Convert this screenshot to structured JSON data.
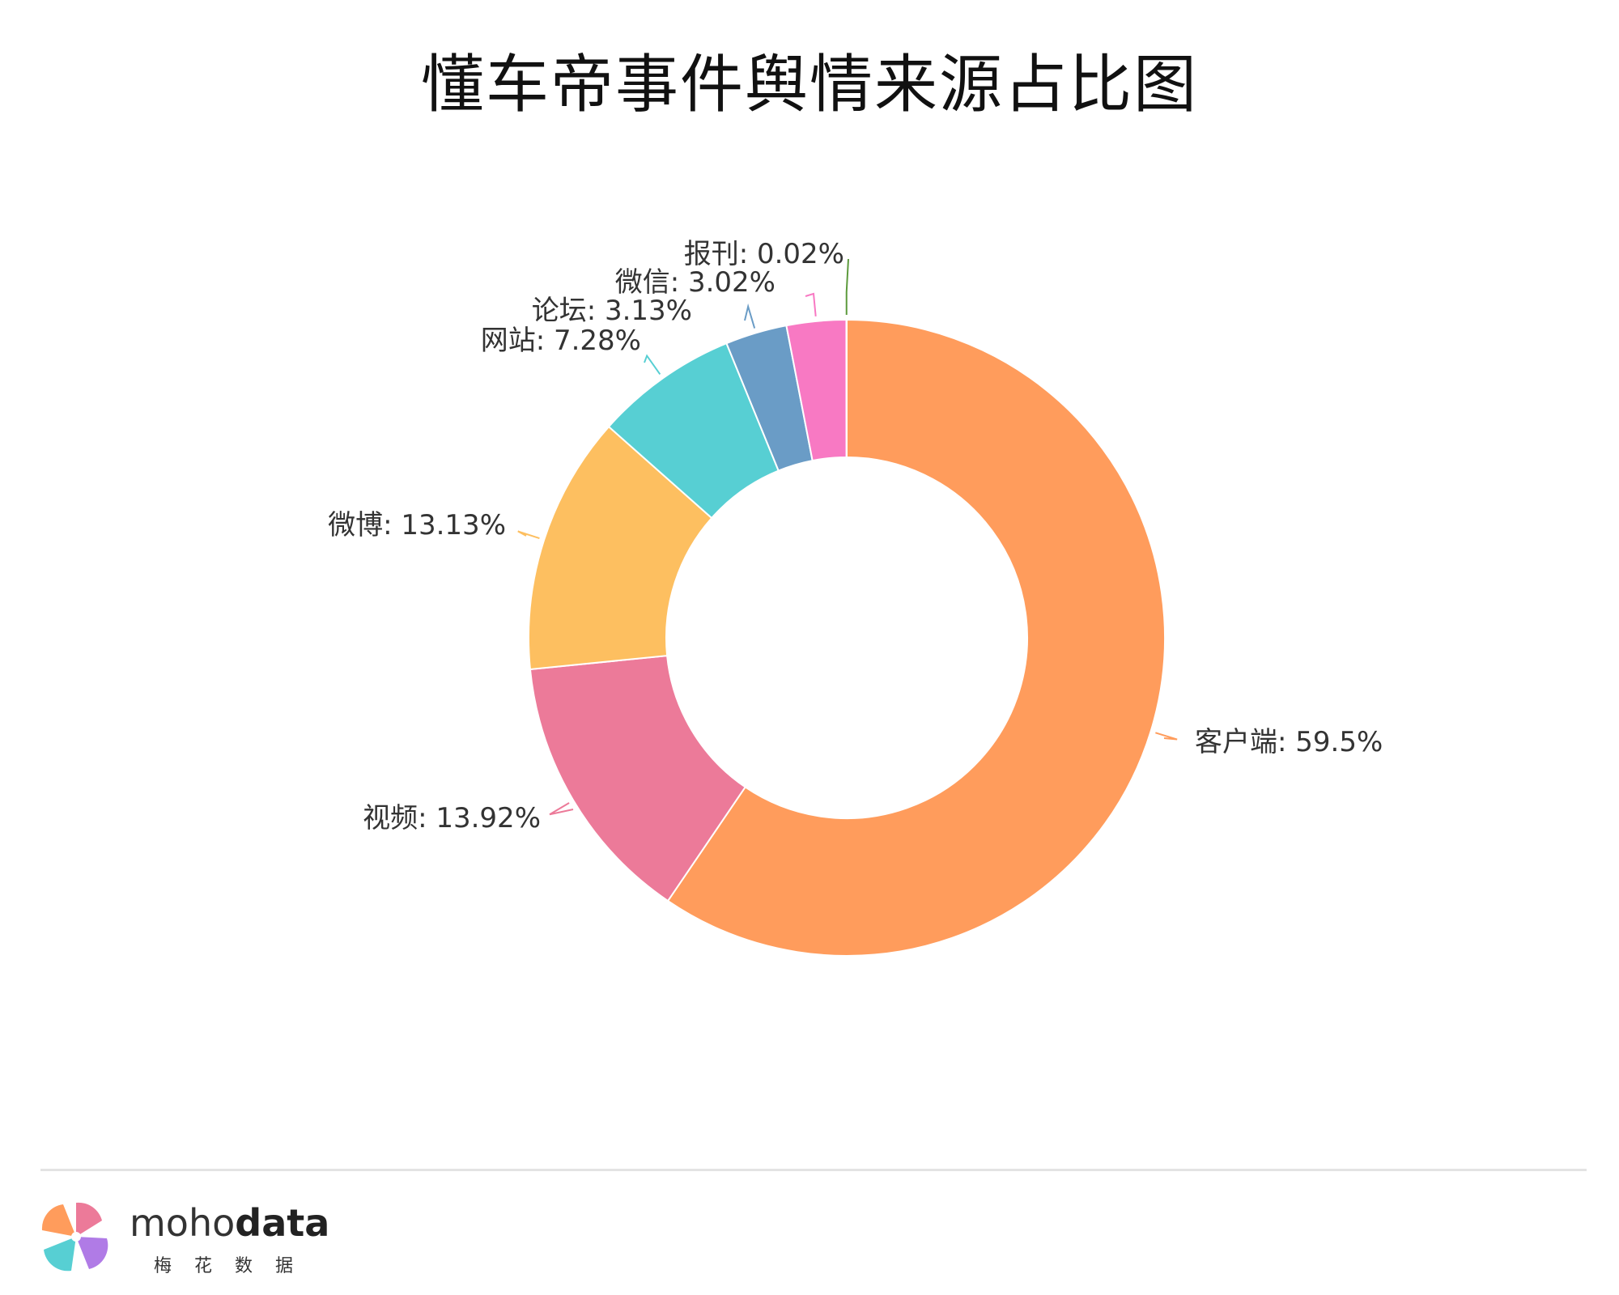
{
  "chart_data": {
    "type": "pie",
    "variant": "donut",
    "title": "懂车帝事件舆情来源占比图",
    "series": [
      {
        "name": "客户端",
        "value": 59.5,
        "label": "客户端: 59.5%",
        "color": "#FF9C5C"
      },
      {
        "name": "视频",
        "value": 13.92,
        "label": "视频: 13.92%",
        "color": "#EC7A99"
      },
      {
        "name": "微博",
        "value": 13.13,
        "label": "微博: 13.13%",
        "color": "#FDBF60"
      },
      {
        "name": "网站",
        "value": 7.28,
        "label": "网站: 7.28%",
        "color": "#57CFD3"
      },
      {
        "name": "论坛",
        "value": 3.13,
        "label": "论坛: 3.13%",
        "color": "#6A9CC6"
      },
      {
        "name": "微信",
        "value": 3.02,
        "label": "微信: 3.02%",
        "color": "#F879C3"
      },
      {
        "name": "报刊",
        "value": 0.02,
        "label": "报刊: 0.02%",
        "color": "#5C9A3C"
      }
    ],
    "direction": "clockwise-from-top"
  },
  "brand": {
    "name_light": "moho",
    "name_bold": "data",
    "subtitle": "梅花数据"
  }
}
